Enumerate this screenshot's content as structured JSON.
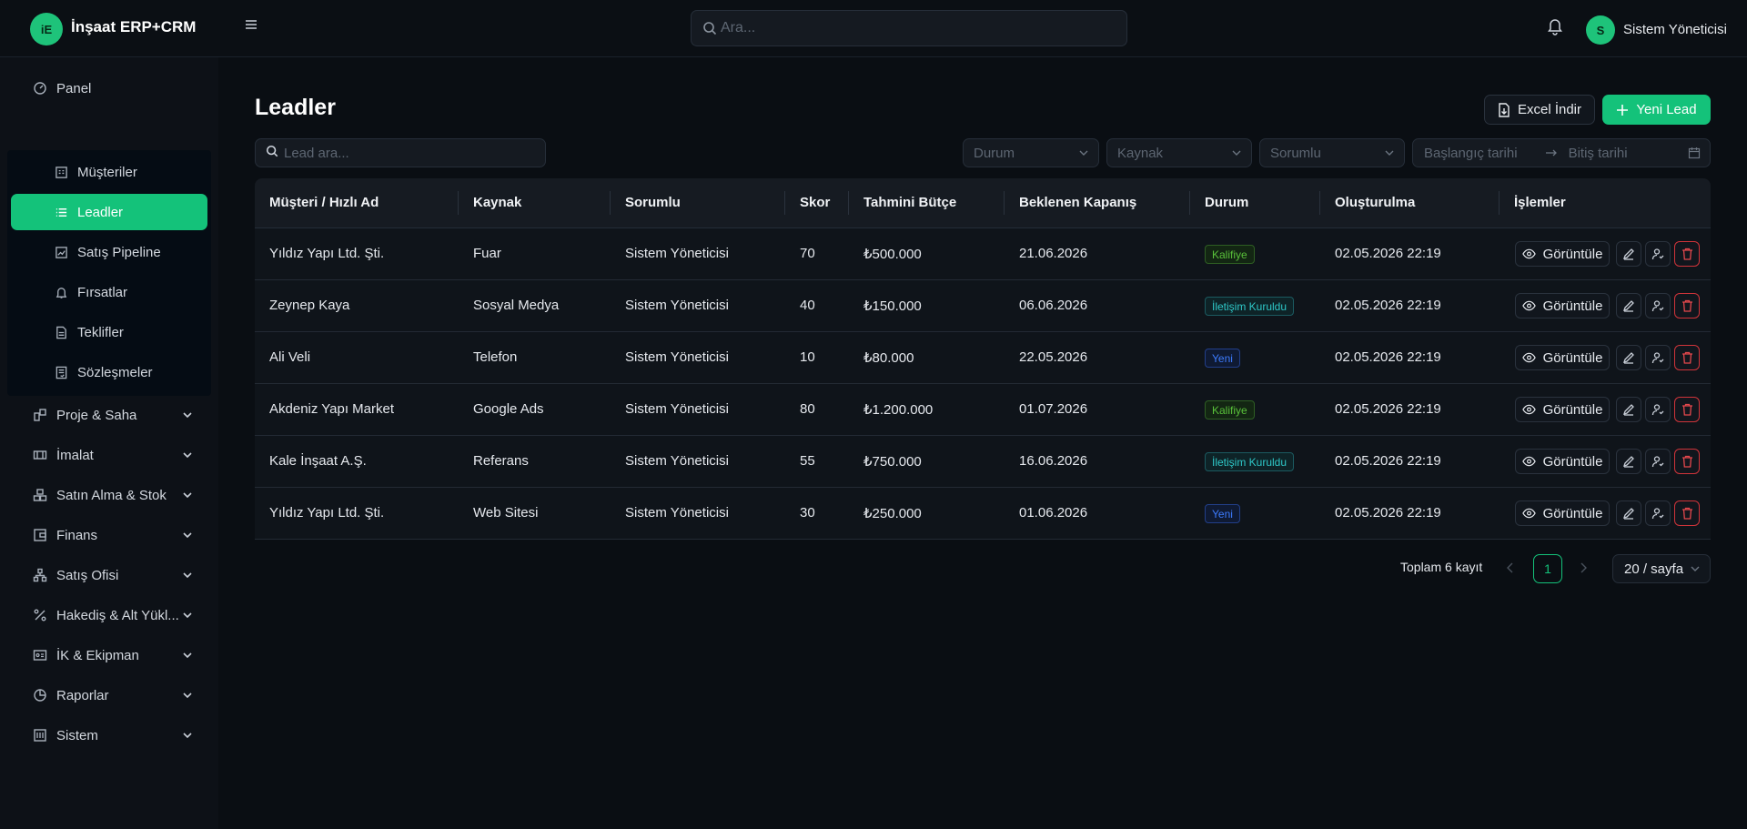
{
  "app": {
    "logo_text": "iE",
    "title": "İnşaat ERP+CRM"
  },
  "header": {
    "search_placeholder": "Ara...",
    "user_initial": "S",
    "user_name": "Sistem Yöneticisi"
  },
  "sidebar": {
    "panel": "Panel",
    "crm_items": [
      {
        "label": "Müşteriler",
        "icon": "building-icon"
      },
      {
        "label": "Leadler",
        "icon": "list-icon",
        "active": true
      },
      {
        "label": "Satış Pipeline",
        "icon": "chart-icon"
      },
      {
        "label": "Fırsatlar",
        "icon": "bell-icon"
      },
      {
        "label": "Teklifler",
        "icon": "document-icon"
      },
      {
        "label": "Sözleşmeler",
        "icon": "contract-icon"
      }
    ],
    "groups": [
      {
        "label": "Proje & Saha",
        "icon": "project-icon"
      },
      {
        "label": "İmalat",
        "icon": "factory-icon"
      },
      {
        "label": "Satın Alma & Stok",
        "icon": "stock-icon"
      },
      {
        "label": "Finans",
        "icon": "finance-icon"
      },
      {
        "label": "Satış Ofisi",
        "icon": "sales-office-icon"
      },
      {
        "label": "Hakediş & Alt Yükl...",
        "icon": "percent-icon"
      },
      {
        "label": "İK & Ekipman",
        "icon": "id-card-icon"
      },
      {
        "label": "Raporlar",
        "icon": "report-icon"
      },
      {
        "label": "Sistem",
        "icon": "system-icon"
      }
    ]
  },
  "page": {
    "title": "Leadler",
    "excel_button": "Excel İndir",
    "new_button": "Yeni Lead",
    "lead_search_placeholder": "Lead ara...",
    "filters": {
      "durum": "Durum",
      "kaynak": "Kaynak",
      "sorumlu": "Sorumlu",
      "start_date": "Başlangıç tarihi",
      "end_date": "Bitiş tarihi"
    }
  },
  "table": {
    "columns": [
      "Müşteri / Hızlı Ad",
      "Kaynak",
      "Sorumlu",
      "Skor",
      "Tahmini Bütçe",
      "Beklenen Kapanış",
      "Durum",
      "Oluşturulma",
      "İşlemler"
    ],
    "view_label": "Görüntüle",
    "rows": [
      {
        "customer": "Yıldız Yapı Ltd. Şti.",
        "source": "Fuar",
        "owner": "Sistem Yöneticisi",
        "score": "70",
        "budget": "₺500.000",
        "close": "21.06.2026",
        "status": "Kalifiye",
        "status_color": "#59c13a",
        "created": "02.05.2026 22:19"
      },
      {
        "customer": "Zeynep Kaya",
        "source": "Sosyal Medya",
        "owner": "Sistem Yöneticisi",
        "score": "40",
        "budget": "₺150.000",
        "close": "06.06.2026",
        "status": "İletişim Kuruldu",
        "status_color": "#2ec8c8",
        "created": "02.05.2026 22:19"
      },
      {
        "customer": "Ali Veli",
        "source": "Telefon",
        "owner": "Sistem Yöneticisi",
        "score": "10",
        "budget": "₺80.000",
        "close": "22.05.2026",
        "status": "Yeni",
        "status_color": "#3d7cff",
        "created": "02.05.2026 22:19"
      },
      {
        "customer": "Akdeniz Yapı Market",
        "source": "Google Ads",
        "owner": "Sistem Yöneticisi",
        "score": "80",
        "budget": "₺1.200.000",
        "close": "01.07.2026",
        "status": "Kalifiye",
        "status_color": "#59c13a",
        "created": "02.05.2026 22:19"
      },
      {
        "customer": "Kale İnşaat A.Ş.",
        "source": "Referans",
        "owner": "Sistem Yöneticisi",
        "score": "55",
        "budget": "₺750.000",
        "close": "16.06.2026",
        "status": "İletişim Kuruldu",
        "status_color": "#2ec8c8",
        "created": "02.05.2026 22:19"
      },
      {
        "customer": "Yıldız Yapı Ltd. Şti.",
        "source": "Web Sitesi",
        "owner": "Sistem Yöneticisi",
        "score": "30",
        "budget": "₺250.000",
        "close": "01.06.2026",
        "status": "Yeni",
        "status_color": "#3d7cff",
        "created": "02.05.2026 22:19"
      }
    ]
  },
  "pagination": {
    "total": "Toplam 6 kayıt",
    "current_page": "1",
    "page_size": "20 / sayfa"
  },
  "colors": {
    "accent": "#14c27a",
    "danger": "#e5484d",
    "background": "#0a0e13"
  }
}
